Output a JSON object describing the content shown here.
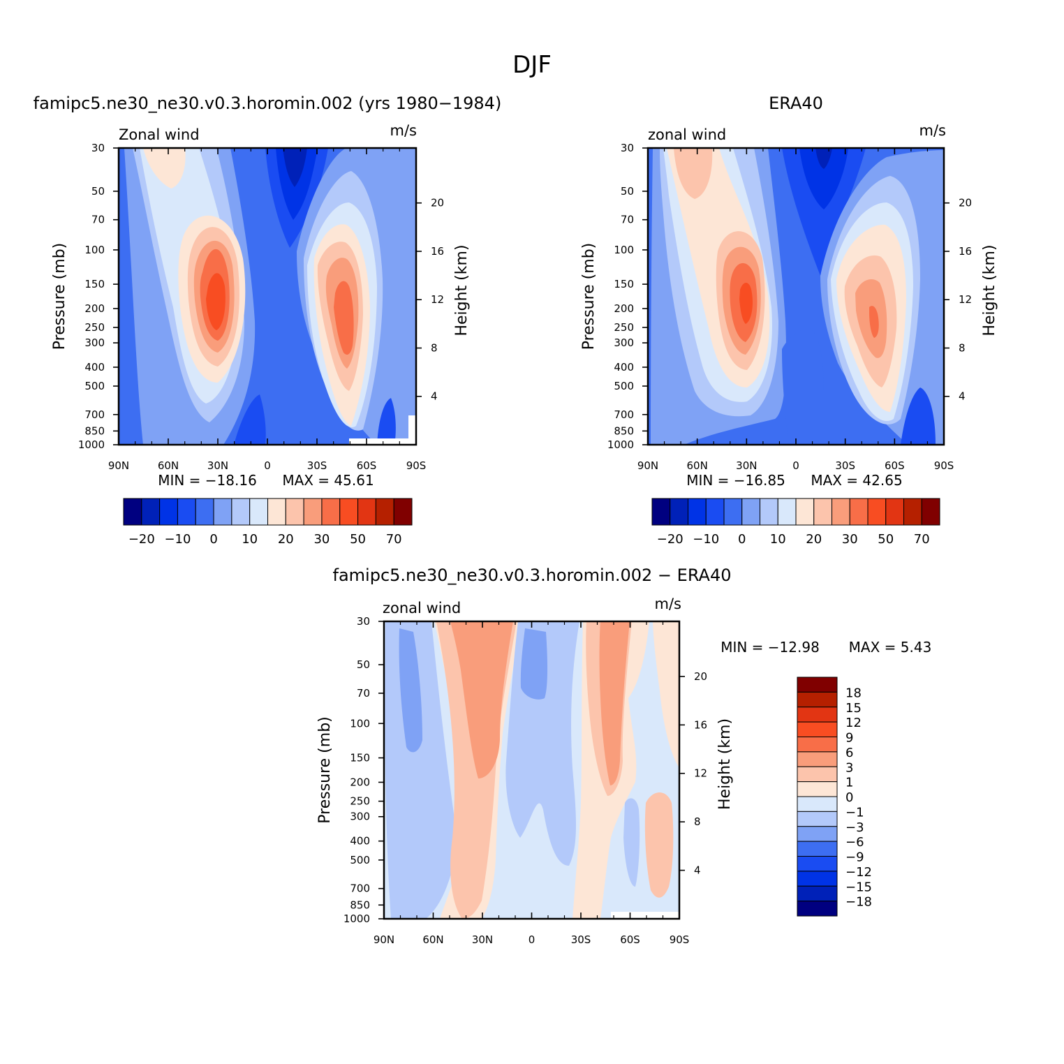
{
  "figure": {
    "title": "DJF",
    "panels": [
      {
        "id": "model",
        "header": "famipc5.ne30_ne30.v0.3.horomin.002 (yrs 1980−1984)",
        "left_label": "Zonal wind",
        "right_label": "m/s",
        "min_text": "MIN = −18.16",
        "max_text": "MAX = 45.61"
      },
      {
        "id": "obs",
        "header": "ERA40",
        "left_label": "zonal wind",
        "right_label": "m/s",
        "min_text": "MIN = −16.85",
        "max_text": "MAX = 42.65"
      },
      {
        "id": "diff",
        "header": "famipc5.ne30_ne30.v0.3.horomin.002 − ERA40",
        "left_label": "zonal wind",
        "right_label": "m/s",
        "min_text": "MIN = −12.98",
        "max_text": "MAX = 5.43"
      }
    ]
  },
  "chart_data": [
    {
      "type": "contour",
      "panel": "model",
      "title": "famipc5.ne30_ne30.v0.3.horomin.002 (yrs 1980−1984)",
      "variable": "Zonal wind",
      "units": "m/s",
      "xlabel": "",
      "ylabel": "Pressure (mb)",
      "ylabel_right": "Height (km)",
      "x_ticks": [
        "90N",
        "60N",
        "30N",
        "0",
        "30S",
        "60S",
        "90S"
      ],
      "y_ticks": [
        "30",
        "50",
        "70",
        "100",
        "150",
        "200",
        "250",
        "300",
        "400",
        "500",
        "700",
        "850",
        "1000"
      ],
      "y_right_ticks": [
        "20",
        "16",
        "12",
        "8",
        "4"
      ],
      "min": -18.16,
      "max": 45.61,
      "jets": [
        {
          "lat": 30,
          "pressure": 200,
          "peak": 45.61
        },
        {
          "lat": -48,
          "pressure": 200,
          "peak": 38
        }
      ],
      "min_location": {
        "lat": -18,
        "pressure": 30,
        "value": -18.16
      }
    },
    {
      "type": "contour",
      "panel": "obs",
      "title": "ERA40",
      "variable": "zonal wind",
      "units": "m/s",
      "xlabel": "",
      "ylabel": "Pressure (mb)",
      "ylabel_right": "Height (km)",
      "x_ticks": [
        "90N",
        "60N",
        "30N",
        "0",
        "30S",
        "60S",
        "90S"
      ],
      "y_ticks": [
        "30",
        "50",
        "70",
        "100",
        "150",
        "200",
        "250",
        "300",
        "400",
        "500",
        "700",
        "850",
        "1000"
      ],
      "y_right_ticks": [
        "20",
        "16",
        "12",
        "8",
        "4"
      ],
      "min": -16.85,
      "max": 42.65,
      "jets": [
        {
          "lat": 30,
          "pressure": 200,
          "peak": 42.65
        },
        {
          "lat": -47,
          "pressure": 250,
          "peak": 33
        }
      ],
      "min_location": {
        "lat": -18,
        "pressure": 30,
        "value": -16.85
      }
    },
    {
      "type": "contour",
      "panel": "diff",
      "title": "famipc5.ne30_ne30.v0.3.horomin.002 − ERA40",
      "variable": "zonal wind",
      "units": "m/s",
      "xlabel": "",
      "ylabel": "Pressure (mb)",
      "ylabel_right": "Height (km)",
      "x_ticks": [
        "90N",
        "60N",
        "30N",
        "0",
        "30S",
        "60S",
        "90S"
      ],
      "y_ticks": [
        "30",
        "50",
        "70",
        "100",
        "150",
        "200",
        "250",
        "300",
        "400",
        "500",
        "700",
        "850",
        "1000"
      ],
      "y_right_ticks": [
        "20",
        "16",
        "12",
        "8",
        "4"
      ],
      "min": -12.98,
      "max": 5.43
    }
  ],
  "colorbars": {
    "main": {
      "orientation": "horizontal",
      "colors": [
        "#000080",
        "#0021b8",
        "#0033e6",
        "#1a4cf2",
        "#3d6ef2",
        "#7fa2f5",
        "#b3c9fa",
        "#d9e8fb",
        "#fde6d6",
        "#fcc4ac",
        "#f99d7b",
        "#f86e48",
        "#f84d22",
        "#e23513",
        "#b52000",
        "#800000"
      ],
      "tick_labels": [
        "−20",
        "−10",
        "0",
        "10",
        "20",
        "30",
        "50",
        "70"
      ]
    },
    "diff": {
      "orientation": "vertical",
      "colors": [
        "#800000",
        "#b52000",
        "#e23513",
        "#f84d22",
        "#f86e48",
        "#f99d7b",
        "#fcc4ac",
        "#fde6d6",
        "#d9e8fb",
        "#b3c9fa",
        "#7fa2f5",
        "#3d6ef2",
        "#1a4cf2",
        "#0033e6",
        "#0021b8",
        "#000080"
      ],
      "tick_labels": [
        "18",
        "15",
        "12",
        "9",
        "6",
        "3",
        "1",
        "0",
        "−1",
        "−3",
        "−6",
        "−9",
        "−12",
        "−15",
        "−18"
      ]
    }
  }
}
